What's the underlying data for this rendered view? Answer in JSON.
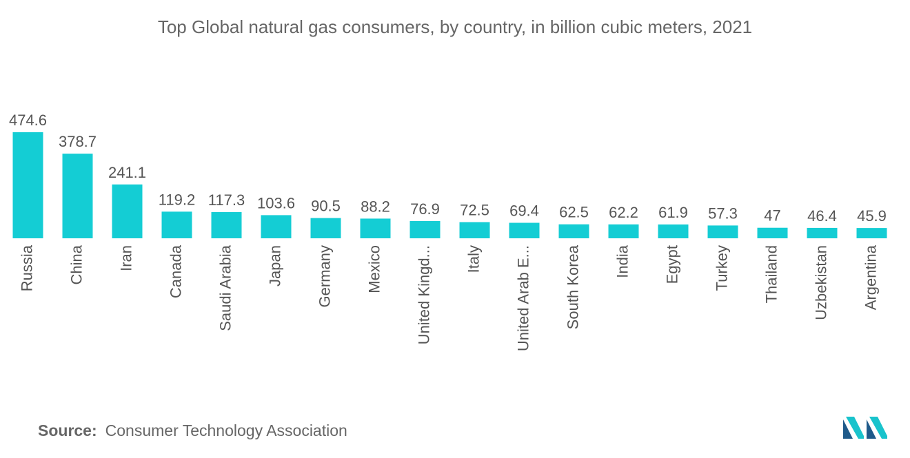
{
  "title": "Top Global natural gas consumers, by country, in billion cubic meters, 2021",
  "source_label": "Source:",
  "source_text": "Consumer Technology Association",
  "colors": {
    "bar": "#14cdd4",
    "logo_dark": "#1f5a8a",
    "logo_light": "#19c3cc",
    "text": "#555555"
  },
  "logo_icon": "mordor-logo-icon",
  "chart_data": {
    "type": "bar",
    "title": "Top Global natural gas consumers, by country, in billion cubic meters, 2021",
    "xlabel": "",
    "ylabel": "",
    "categories": [
      "Russia",
      "China",
      "Iran",
      "Canada",
      "Saudi Arabia",
      "Japan",
      "Germany",
      "Mexico",
      "United Kingd...",
      "Italy",
      "United Arab E...",
      "South Korea",
      "India",
      "Egypt",
      "Turkey",
      "Thailand",
      "Uzbekistan",
      "Argentina"
    ],
    "values": [
      474.6,
      378.7,
      241.1,
      119.2,
      117.3,
      103.6,
      90.5,
      88.2,
      76.9,
      72.5,
      69.4,
      62.5,
      62.2,
      61.9,
      57.3,
      47,
      46.4,
      45.9
    ],
    "value_labels": [
      "474.6",
      "378.7",
      "241.1",
      "119.2",
      "117.3",
      "103.6",
      "90.5",
      "88.2",
      "76.9",
      "72.5",
      "69.4",
      "62.5",
      "62.2",
      "61.9",
      "57.3",
      "47",
      "46.4",
      "45.9"
    ],
    "ylim": [
      0,
      474.6
    ],
    "grid": false,
    "legend": "none"
  }
}
